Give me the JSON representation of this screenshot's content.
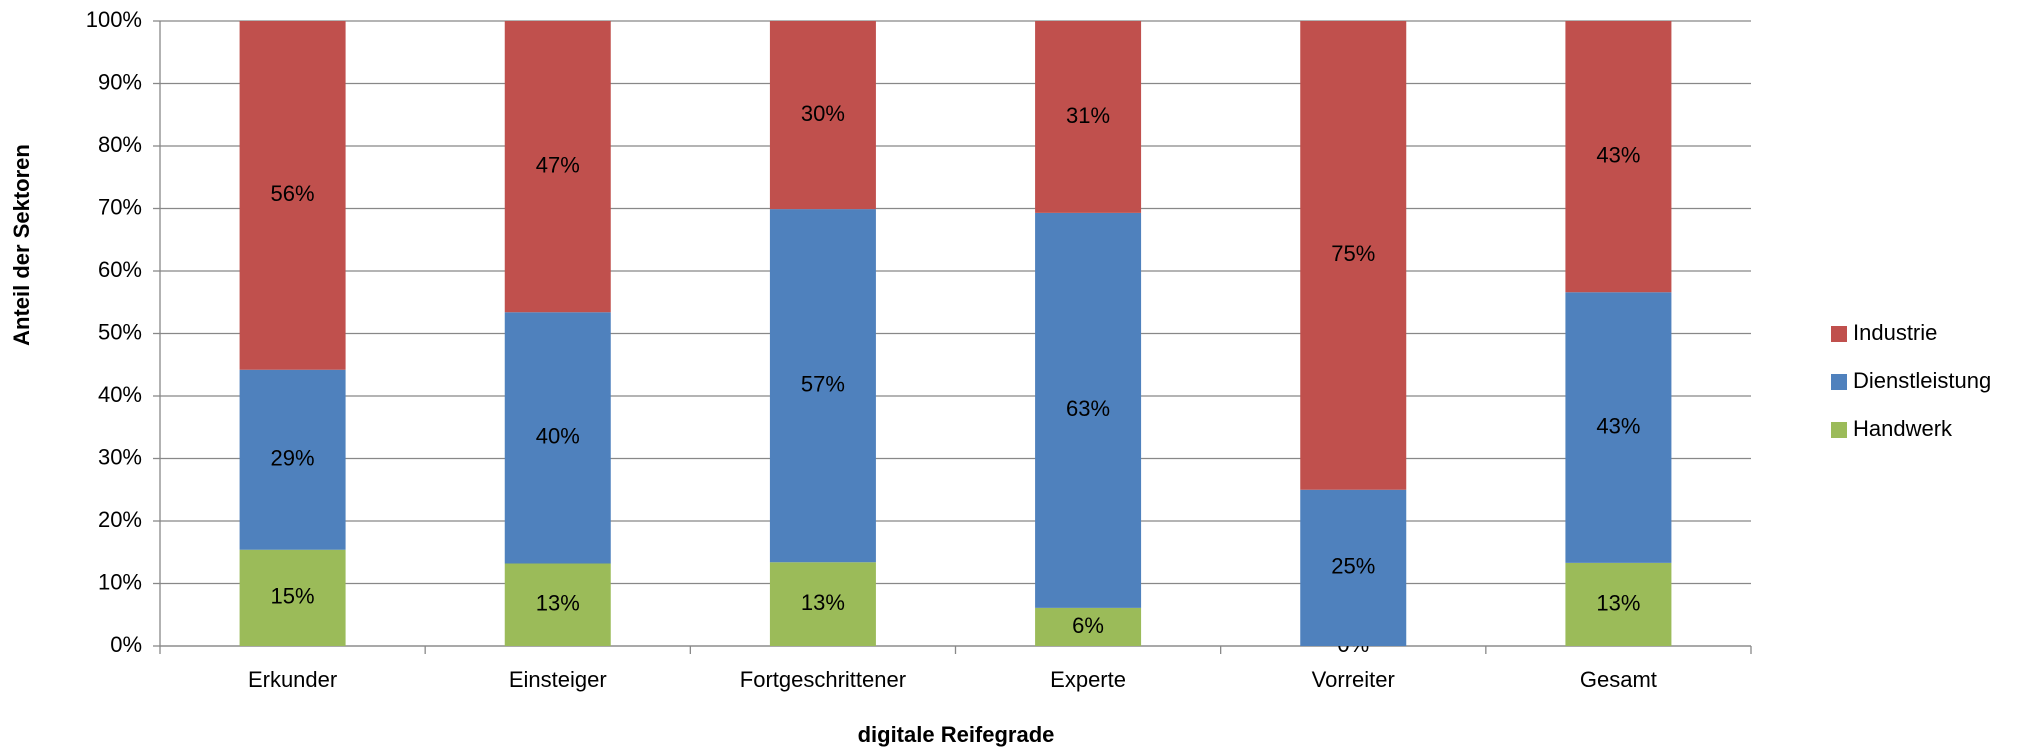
{
  "chart_data": {
    "type": "stacked_bar_100",
    "x_label": "digitale Reifegrade",
    "y_label": "Anteil der Sektoren",
    "categories": [
      "Erkunder",
      "Einsteiger",
      "Fortgeschrittener",
      "Experte",
      "Vorreiter",
      "Gesamt"
    ],
    "series": [
      {
        "name": "Handwerk",
        "color": "#9bbb59",
        "values": [
          15.4,
          13.2,
          13.4,
          6.1,
          0,
          13.3
        ],
        "value_labels": [
          "15%",
          "13%",
          "13%",
          "6%",
          "0%",
          "13%"
        ]
      },
      {
        "name": "Dienstleistung",
        "color": "#4f81bd",
        "values": [
          28.8,
          40.2,
          56.5,
          63.2,
          25,
          43.3
        ],
        "value_labels": [
          "29%",
          "40%",
          "57%",
          "63%",
          "25%",
          "43%"
        ]
      },
      {
        "name": "Industrie",
        "color": "#c0504d",
        "values": [
          55.8,
          46.6,
          30.1,
          30.7,
          75,
          43.4
        ],
        "value_labels": [
          "56%",
          "47%",
          "30%",
          "31%",
          "75%",
          "43%"
        ]
      }
    ],
    "ylim": [
      0,
      100
    ],
    "yticks": [
      {
        "value": 0,
        "label": "0%"
      },
      {
        "value": 10,
        "label": "10%"
      },
      {
        "value": 20,
        "label": "20%"
      },
      {
        "value": 30,
        "label": "30%"
      },
      {
        "value": 40,
        "label": "40%"
      },
      {
        "value": 50,
        "label": "50%"
      },
      {
        "value": 60,
        "label": "60%"
      },
      {
        "value": 70,
        "label": "70%"
      },
      {
        "value": 80,
        "label": "80%"
      },
      {
        "value": 90,
        "label": "90%"
      },
      {
        "value": 100,
        "label": "100%"
      }
    ],
    "grid": true,
    "legend": "right"
  }
}
